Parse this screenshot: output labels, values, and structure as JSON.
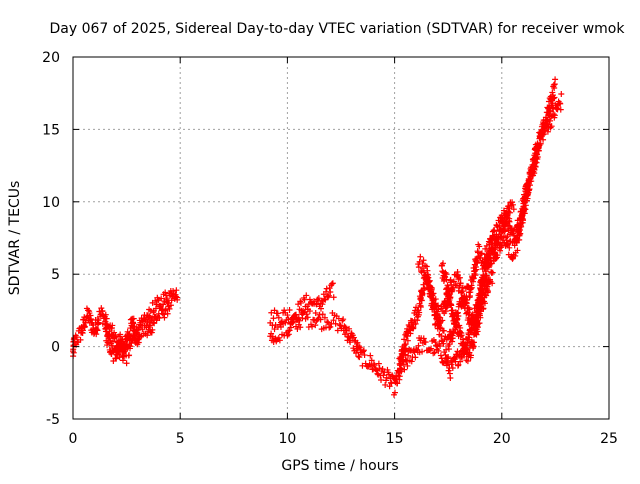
{
  "chart_data": {
    "type": "scatter",
    "title": "Day 067 of 2025, Sidereal Day-to-day VTEC variation (SDTVAR) for receiver wmok",
    "xlabel": "GPS time / hours",
    "ylabel": "SDTVAR / TECUs",
    "xlim": [
      0,
      25
    ],
    "ylim": [
      -5,
      20
    ],
    "xticks": [
      0,
      5,
      10,
      15,
      20,
      25
    ],
    "yticks": [
      -5,
      0,
      5,
      10,
      15,
      20
    ],
    "grid": true,
    "marker": "plus",
    "series": [
      {
        "color": "#ff0000",
        "band_width": 1.2,
        "segments": [
          [
            [
              0.0,
              -0.5
            ],
            [
              0.05,
              0.2
            ],
            [
              0.15,
              0.5
            ],
            [
              0.3,
              0.8
            ],
            [
              0.45,
              1.2
            ],
            [
              0.55,
              1.8
            ],
            [
              0.7,
              2.2
            ],
            [
              0.8,
              1.8
            ],
            [
              0.9,
              1.4
            ],
            [
              1.0,
              1.1
            ],
            [
              1.1,
              1.5
            ],
            [
              1.2,
              2.0
            ],
            [
              1.35,
              2.3
            ],
            [
              1.5,
              1.8
            ],
            [
              1.6,
              1.3
            ],
            [
              1.8,
              1.0
            ],
            [
              1.9,
              0.6
            ],
            [
              2.0,
              0.2
            ],
            [
              2.1,
              -0.3
            ],
            [
              2.2,
              -0.1
            ],
            [
              2.3,
              -0.5
            ],
            [
              2.45,
              0.2
            ],
            [
              2.55,
              0.8
            ],
            [
              2.7,
              1.3
            ],
            [
              2.8,
              1.7
            ],
            [
              2.9,
              1.0
            ],
            [
              3.0,
              0.5
            ],
            [
              3.1,
              0.9
            ],
            [
              3.3,
              1.2
            ],
            [
              3.5,
              1.0
            ],
            [
              3.7,
              1.6
            ],
            [
              3.9,
              2.0
            ],
            [
              4.1,
              2.3
            ],
            [
              4.3,
              2.6
            ],
            [
              4.5,
              3.0
            ],
            [
              4.7,
              3.3
            ],
            [
              4.9,
              3.5
            ]
          ],
          [
            [
              1.5,
              1.2
            ],
            [
              1.6,
              0.6
            ],
            [
              1.7,
              0.2
            ],
            [
              1.8,
              -0.3
            ],
            [
              1.9,
              -0.7
            ],
            [
              2.0,
              -0.4
            ],
            [
              2.1,
              0.0
            ],
            [
              2.2,
              0.5
            ],
            [
              2.3,
              0.2
            ],
            [
              2.4,
              -0.3
            ],
            [
              2.5,
              -0.6
            ],
            [
              2.6,
              -0.3
            ],
            [
              2.7,
              0.2
            ],
            [
              2.85,
              0.6
            ],
            [
              3.0,
              1.0
            ],
            [
              3.2,
              1.4
            ],
            [
              3.4,
              1.7
            ],
            [
              3.6,
              2.2
            ],
            [
              3.8,
              2.6
            ],
            [
              4.0,
              2.9
            ],
            [
              4.3,
              3.3
            ],
            [
              4.6,
              3.7
            ],
            [
              4.9,
              3.9
            ]
          ],
          [
            [
              9.2,
              1.9
            ],
            [
              9.4,
              2.0
            ],
            [
              9.6,
              2.1
            ],
            [
              9.8,
              2.1
            ],
            [
              10.0,
              2.2
            ],
            [
              10.2,
              2.2
            ],
            [
              10.4,
              2.3
            ],
            [
              10.6,
              2.6
            ],
            [
              10.8,
              2.9
            ],
            [
              11.0,
              3.1
            ],
            [
              11.2,
              3.0
            ],
            [
              11.4,
              2.8
            ],
            [
              11.6,
              3.1
            ],
            [
              11.8,
              3.4
            ],
            [
              12.0,
              3.7
            ],
            [
              12.2,
              3.9
            ]
          ],
          [
            [
              9.2,
              0.6
            ],
            [
              9.4,
              0.8
            ],
            [
              9.6,
              1.0
            ],
            [
              9.8,
              1.1
            ],
            [
              10.0,
              1.1
            ],
            [
              10.2,
              1.4
            ],
            [
              10.4,
              1.6
            ],
            [
              10.6,
              1.9
            ],
            [
              10.8,
              2.0
            ],
            [
              11.0,
              1.9
            ],
            [
              11.2,
              2.0
            ],
            [
              11.4,
              1.9
            ],
            [
              11.6,
              1.8
            ],
            [
              11.8,
              1.9
            ],
            [
              12.0,
              1.8
            ],
            [
              12.2,
              1.7
            ],
            [
              12.4,
              1.6
            ],
            [
              12.6,
              1.4
            ],
            [
              12.8,
              1.0
            ],
            [
              13.0,
              0.5
            ],
            [
              13.2,
              0.0
            ],
            [
              13.4,
              -0.6
            ],
            [
              13.6,
              -0.9
            ],
            [
              13.8,
              -1.0
            ],
            [
              14.0,
              -1.3
            ],
            [
              14.2,
              -1.6
            ],
            [
              14.4,
              -1.9
            ],
            [
              14.6,
              -2.1
            ],
            [
              14.8,
              -2.4
            ],
            [
              15.0,
              -2.8
            ],
            [
              15.2,
              -2.0
            ],
            [
              15.4,
              -1.3
            ],
            [
              15.6,
              -0.9
            ],
            [
              15.8,
              -0.5
            ],
            [
              16.0,
              -0.2
            ],
            [
              16.2,
              0.2
            ],
            [
              16.4,
              0.0
            ],
            [
              16.6,
              -0.1
            ],
            [
              16.8,
              0.0
            ],
            [
              17.0,
              -0.3
            ],
            [
              17.2,
              -0.5
            ],
            [
              17.4,
              -0.9
            ],
            [
              17.6,
              -1.6
            ],
            [
              17.8,
              -1.2
            ],
            [
              18.0,
              -0.6
            ],
            [
              18.2,
              -0.2
            ],
            [
              18.4,
              0.5
            ],
            [
              18.6,
              1.5
            ],
            [
              18.8,
              2.5
            ],
            [
              19.0,
              3.5
            ],
            [
              19.2,
              4.8
            ],
            [
              19.4,
              6.0
            ],
            [
              19.6,
              6.3
            ],
            [
              19.8,
              7.5
            ],
            [
              20.0,
              8.2
            ],
            [
              20.2,
              9.0
            ],
            [
              20.4,
              8.0
            ],
            [
              20.6,
              7.5
            ],
            [
              20.8,
              8.5
            ],
            [
              21.0,
              9.8
            ],
            [
              21.2,
              11.0
            ],
            [
              21.4,
              12.0
            ],
            [
              21.6,
              13.5
            ],
            [
              21.8,
              14.5
            ],
            [
              22.0,
              15.0
            ],
            [
              22.2,
              15.5
            ],
            [
              22.4,
              16.0
            ],
            [
              22.6,
              16.5
            ],
            [
              22.8,
              17.0
            ]
          ],
          [
            [
              15.2,
              -1.5
            ],
            [
              15.4,
              -0.2
            ],
            [
              15.6,
              0.8
            ],
            [
              15.8,
              1.5
            ],
            [
              16.0,
              2.2
            ],
            [
              16.2,
              3.0
            ],
            [
              16.3,
              4.0
            ],
            [
              16.5,
              4.6
            ],
            [
              16.7,
              3.8
            ],
            [
              16.9,
              2.8
            ],
            [
              17.1,
              2.0
            ],
            [
              17.3,
              2.5
            ],
            [
              17.5,
              3.5
            ],
            [
              17.7,
              4.5
            ],
            [
              17.9,
              4.8
            ],
            [
              18.1,
              4.0
            ],
            [
              18.3,
              3.0
            ],
            [
              18.5,
              2.0
            ],
            [
              18.7,
              1.2
            ],
            [
              18.9,
              2.5
            ],
            [
              19.0,
              4.0
            ],
            [
              19.2,
              5.5
            ],
            [
              19.4,
              6.5
            ],
            [
              19.6,
              7.5
            ],
            [
              19.8,
              8.0
            ],
            [
              20.0,
              8.5
            ],
            [
              20.2,
              9.2
            ],
            [
              20.4,
              9.8
            ],
            [
              20.6,
              10.0
            ]
          ],
          [
            [
              16.1,
              5.8
            ],
            [
              16.3,
              5.5
            ],
            [
              16.5,
              5.0
            ],
            [
              16.7,
              3.5
            ],
            [
              16.9,
              2.0
            ],
            [
              17.1,
              1.0
            ],
            [
              17.3,
              0.5
            ],
            [
              17.5,
              0.2
            ],
            [
              17.7,
              1.0
            ],
            [
              17.9,
              2.0
            ],
            [
              18.1,
              2.8
            ],
            [
              18.3,
              3.5
            ],
            [
              18.5,
              4.0
            ],
            [
              18.7,
              5.0
            ],
            [
              18.9,
              6.5
            ],
            [
              19.1,
              6.0
            ],
            [
              19.3,
              6.5
            ],
            [
              19.5,
              7.0
            ],
            [
              19.7,
              6.5
            ],
            [
              19.9,
              7.0
            ],
            [
              20.1,
              7.8
            ],
            [
              20.3,
              7.0
            ],
            [
              20.5,
              6.5
            ],
            [
              20.7,
              7.0
            ],
            [
              20.9,
              8.5
            ],
            [
              21.1,
              10.0
            ],
            [
              21.3,
              11.5
            ],
            [
              21.5,
              12.5
            ],
            [
              21.7,
              13.8
            ],
            [
              21.9,
              14.8
            ],
            [
              22.1,
              15.8
            ],
            [
              22.3,
              17.0
            ],
            [
              22.5,
              18.0
            ]
          ],
          [
            [
              17.2,
              5.5
            ],
            [
              17.4,
              4.5
            ],
            [
              17.6,
              3.0
            ],
            [
              17.8,
              2.0
            ],
            [
              18.0,
              1.0
            ],
            [
              18.2,
              0.0
            ],
            [
              18.4,
              -0.8
            ],
            [
              18.6,
              0.0
            ],
            [
              18.8,
              1.0
            ],
            [
              19.0,
              2.5
            ],
            [
              19.2,
              3.5
            ],
            [
              19.4,
              4.5
            ],
            [
              19.6,
              5.0
            ]
          ]
        ]
      }
    ]
  }
}
